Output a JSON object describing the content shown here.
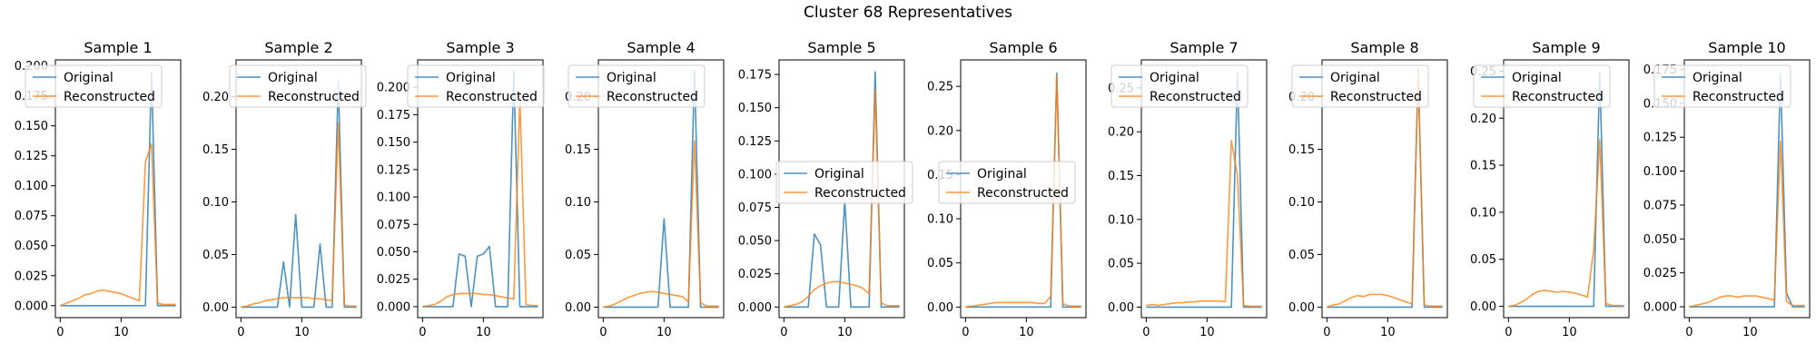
{
  "figure": {
    "title": "Cluster 68 Representatives"
  },
  "colors": {
    "original": "#1f77b4",
    "reconstructed": "#ff7f0e",
    "axes": "#000000",
    "legend_frame": "#cccccc"
  },
  "legend": {
    "labels": [
      "Original",
      "Reconstructed"
    ]
  },
  "chart_data": [
    {
      "type": "line",
      "title": "Sample 1",
      "xlim": [
        -0.8,
        19.8
      ],
      "ylim": [
        -0.01,
        0.205
      ],
      "xticks": [
        0,
        10
      ],
      "yticks": [
        0.0,
        0.025,
        0.05,
        0.075,
        0.1,
        0.125,
        0.15,
        0.175,
        0.2
      ],
      "ytick_labels": [
        "0.000",
        "0.025",
        "0.050",
        "0.075",
        "0.100",
        "0.125",
        "0.150",
        "0.175",
        "0.200"
      ],
      "legend_loc": "upper left",
      "x": [
        0,
        1,
        2,
        3,
        4,
        5,
        6,
        7,
        8,
        9,
        10,
        11,
        12,
        13,
        14,
        15,
        16,
        17,
        18,
        19
      ],
      "series": [
        {
          "name": "Original",
          "values": [
            0,
            0,
            0,
            0,
            0,
            0,
            0,
            0,
            0,
            0,
            0,
            0,
            0,
            0,
            0,
            0.195,
            0,
            0,
            0,
            0
          ]
        },
        {
          "name": "Reconstructed",
          "values": [
            0,
            0.002,
            0.004,
            0.006,
            0.009,
            0.01,
            0.012,
            0.013,
            0.012,
            0.011,
            0.01,
            0.008,
            0.006,
            0.004,
            0.12,
            0.135,
            0.002,
            0.001,
            0.001,
            0.001
          ]
        }
      ]
    },
    {
      "type": "line",
      "title": "Sample 2",
      "xlim": [
        -0.8,
        19.8
      ],
      "ylim": [
        -0.01,
        0.235
      ],
      "xticks": [
        0,
        10
      ],
      "yticks": [
        0.0,
        0.05,
        0.1,
        0.15,
        0.2
      ],
      "ytick_labels": [
        "0.00",
        "0.05",
        "0.10",
        "0.15",
        "0.20"
      ],
      "legend_loc": "upper right",
      "x": [
        0,
        1,
        2,
        3,
        4,
        5,
        6,
        7,
        8,
        9,
        10,
        11,
        12,
        13,
        14,
        15,
        16,
        17,
        18,
        19
      ],
      "series": [
        {
          "name": "Original",
          "values": [
            0,
            0,
            0,
            0,
            0,
            0,
            0,
            0.043,
            0,
            0.088,
            0,
            0,
            0,
            0.06,
            0,
            0,
            0.215,
            0,
            0,
            0
          ]
        },
        {
          "name": "Reconstructed",
          "values": [
            0,
            0.001,
            0.003,
            0.004,
            0.006,
            0.007,
            0.008,
            0.009,
            0.009,
            0.009,
            0.009,
            0.009,
            0.008,
            0.008,
            0.007,
            0.006,
            0.175,
            0.002,
            0.001,
            0.001
          ]
        }
      ]
    },
    {
      "type": "line",
      "title": "Sample 3",
      "xlim": [
        -0.8,
        19.8
      ],
      "ylim": [
        -0.01,
        0.225
      ],
      "xticks": [
        0,
        10
      ],
      "yticks": [
        0.0,
        0.025,
        0.05,
        0.075,
        0.1,
        0.125,
        0.15,
        0.175,
        0.2
      ],
      "ytick_labels": [
        "0.000",
        "0.025",
        "0.050",
        "0.075",
        "0.100",
        "0.125",
        "0.150",
        "0.175",
        "0.200"
      ],
      "legend_loc": "upper center",
      "x": [
        0,
        1,
        2,
        3,
        4,
        5,
        6,
        7,
        8,
        9,
        10,
        11,
        12,
        13,
        14,
        15,
        16,
        17,
        18,
        19
      ],
      "series": [
        {
          "name": "Original",
          "values": [
            0,
            0,
            0,
            0,
            0,
            0,
            0.048,
            0.046,
            0,
            0.046,
            0.048,
            0.055,
            0,
            0,
            0,
            0.215,
            0,
            0,
            0,
            0
          ]
        },
        {
          "name": "Reconstructed",
          "values": [
            0,
            0.001,
            0.002,
            0.005,
            0.009,
            0.011,
            0.012,
            0.012,
            0.012,
            0.012,
            0.011,
            0.011,
            0.01,
            0.009,
            0.008,
            0.007,
            0.19,
            0.002,
            0.001,
            0.001
          ]
        }
      ]
    },
    {
      "type": "line",
      "title": "Sample 4",
      "xlim": [
        -0.8,
        19.8
      ],
      "ylim": [
        -0.01,
        0.235
      ],
      "xticks": [
        0,
        10
      ],
      "yticks": [
        0.0,
        0.05,
        0.1,
        0.15,
        0.2
      ],
      "ytick_labels": [
        "0.00",
        "0.05",
        "0.10",
        "0.15",
        "0.20"
      ],
      "legend_loc": "upper left",
      "x": [
        0,
        1,
        2,
        3,
        4,
        5,
        6,
        7,
        8,
        9,
        10,
        11,
        12,
        13,
        14,
        15,
        16,
        17,
        18,
        19
      ],
      "series": [
        {
          "name": "Original",
          "values": [
            0,
            0,
            0,
            0,
            0,
            0,
            0,
            0,
            0,
            0,
            0.084,
            0,
            0,
            0,
            0,
            0.225,
            0,
            0,
            0,
            0
          ]
        },
        {
          "name": "Reconstructed",
          "values": [
            0,
            0.001,
            0.003,
            0.006,
            0.009,
            0.011,
            0.013,
            0.014,
            0.015,
            0.014,
            0.013,
            0.012,
            0.011,
            0.01,
            0.005,
            0.158,
            0.004,
            0.001,
            0.001,
            0.001
          ]
        }
      ]
    },
    {
      "type": "line",
      "title": "Sample 5",
      "xlim": [
        -0.8,
        19.8
      ],
      "ylim": [
        -0.008,
        0.186
      ],
      "xticks": [
        0,
        10
      ],
      "yticks": [
        0.0,
        0.025,
        0.05,
        0.075,
        0.1,
        0.125,
        0.15,
        0.175
      ],
      "ytick_labels": [
        "0.000",
        "0.025",
        "0.050",
        "0.075",
        "0.100",
        "0.125",
        "0.150",
        "0.175"
      ],
      "legend_loc": "center",
      "x": [
        0,
        1,
        2,
        3,
        4,
        5,
        6,
        7,
        8,
        9,
        10,
        11,
        12,
        13,
        14,
        15,
        16,
        17,
        18,
        19
      ],
      "series": [
        {
          "name": "Original",
          "values": [
            0,
            0,
            0,
            0,
            0,
            0.055,
            0.047,
            0,
            0,
            0,
            0.08,
            0,
            0,
            0,
            0,
            0.177,
            0,
            0,
            0,
            0
          ]
        },
        {
          "name": "Reconstructed",
          "values": [
            0,
            0.001,
            0.002,
            0.004,
            0.008,
            0.013,
            0.016,
            0.018,
            0.019,
            0.019,
            0.018,
            0.017,
            0.016,
            0.014,
            0.01,
            0.163,
            0.003,
            0.001,
            0.001,
            0.001
          ]
        }
      ]
    },
    {
      "type": "line",
      "title": "Sample 6",
      "xlim": [
        -0.8,
        19.8
      ],
      "ylim": [
        -0.012,
        0.28
      ],
      "xticks": [
        0,
        10
      ],
      "yticks": [
        0.0,
        0.05,
        0.1,
        0.15,
        0.2,
        0.25
      ],
      "ytick_labels": [
        "0.00",
        "0.05",
        "0.10",
        "0.15",
        "0.20",
        "0.25"
      ],
      "legend_loc": "center left",
      "x": [
        0,
        1,
        2,
        3,
        4,
        5,
        6,
        7,
        8,
        9,
        10,
        11,
        12,
        13,
        14,
        15,
        16,
        17,
        18,
        19
      ],
      "series": [
        {
          "name": "Original",
          "values": [
            0,
            0,
            0,
            0,
            0,
            0,
            0,
            0,
            0,
            0,
            0,
            0,
            0,
            0,
            0,
            0.265,
            0,
            0,
            0,
            0
          ]
        },
        {
          "name": "Reconstructed",
          "values": [
            0,
            0.001,
            0.002,
            0.003,
            0.004,
            0.005,
            0.005,
            0.005,
            0.005,
            0.005,
            0.005,
            0.005,
            0.004,
            0.004,
            0.012,
            0.262,
            0.004,
            0.001,
            0.001,
            0.001
          ]
        }
      ]
    },
    {
      "type": "line",
      "title": "Sample 7",
      "xlim": [
        -0.8,
        19.8
      ],
      "ylim": [
        -0.012,
        0.282
      ],
      "xticks": [
        0,
        10
      ],
      "yticks": [
        0.0,
        0.05,
        0.1,
        0.15,
        0.2,
        0.25
      ],
      "ytick_labels": [
        "0.00",
        "0.05",
        "0.10",
        "0.15",
        "0.20",
        "0.25"
      ],
      "legend_loc": "upper left",
      "x": [
        0,
        1,
        2,
        3,
        4,
        5,
        6,
        7,
        8,
        9,
        10,
        11,
        12,
        13,
        14,
        15,
        16,
        17,
        18,
        19
      ],
      "series": [
        {
          "name": "Original",
          "values": [
            0,
            0,
            0,
            0,
            0,
            0,
            0,
            0,
            0,
            0,
            0,
            0,
            0,
            0,
            0,
            0.268,
            0,
            0,
            0,
            0
          ]
        },
        {
          "name": "Reconstructed",
          "values": [
            0.002,
            0.003,
            0.002,
            0.003,
            0.004,
            0.005,
            0.005,
            0.006,
            0.006,
            0.007,
            0.007,
            0.007,
            0.007,
            0.006,
            0.19,
            0.15,
            0.002,
            0.001,
            0.001,
            0.001
          ]
        }
      ]
    },
    {
      "type": "line",
      "title": "Sample 8",
      "xlim": [
        -0.8,
        19.8
      ],
      "ylim": [
        -0.01,
        0.235
      ],
      "xticks": [
        0,
        10
      ],
      "yticks": [
        0.0,
        0.05,
        0.1,
        0.15,
        0.2
      ],
      "ytick_labels": [
        "0.00",
        "0.05",
        "0.10",
        "0.15",
        "0.20"
      ],
      "legend_loc": "upper left",
      "x": [
        0,
        1,
        2,
        3,
        4,
        5,
        6,
        7,
        8,
        9,
        10,
        11,
        12,
        13,
        14,
        15,
        16,
        17,
        18,
        19
      ],
      "series": [
        {
          "name": "Original",
          "values": [
            0,
            0,
            0,
            0,
            0,
            0,
            0,
            0,
            0,
            0,
            0,
            0,
            0,
            0,
            0,
            0.226,
            0,
            0,
            0,
            0
          ]
        },
        {
          "name": "Reconstructed",
          "values": [
            0,
            0.002,
            0.003,
            0.006,
            0.009,
            0.011,
            0.01,
            0.012,
            0.012,
            0.012,
            0.011,
            0.009,
            0.007,
            0.005,
            0.003,
            0.222,
            0.002,
            0.001,
            0.001,
            0.001
          ]
        }
      ]
    },
    {
      "type": "line",
      "title": "Sample 9",
      "xlim": [
        -0.8,
        19.8
      ],
      "ylim": [
        -0.012,
        0.262
      ],
      "xticks": [
        0,
        10
      ],
      "yticks": [
        0.0,
        0.05,
        0.1,
        0.15,
        0.2,
        0.25
      ],
      "ytick_labels": [
        "0.00",
        "0.05",
        "0.10",
        "0.15",
        "0.20",
        "0.25"
      ],
      "legend_loc": "upper left",
      "x": [
        0,
        1,
        2,
        3,
        4,
        5,
        6,
        7,
        8,
        9,
        10,
        11,
        12,
        13,
        14,
        15,
        16,
        17,
        18,
        19
      ],
      "series": [
        {
          "name": "Original",
          "values": [
            0,
            0,
            0,
            0,
            0,
            0,
            0,
            0,
            0,
            0,
            0,
            0,
            0,
            0,
            0,
            0.25,
            0,
            0,
            0,
            0
          ]
        },
        {
          "name": "Reconstructed",
          "values": [
            0,
            0.001,
            0.004,
            0.008,
            0.013,
            0.016,
            0.017,
            0.016,
            0.015,
            0.016,
            0.015,
            0.014,
            0.012,
            0.01,
            0.06,
            0.177,
            0.003,
            0.001,
            0.001,
            0.001
          ]
        }
      ]
    },
    {
      "type": "line",
      "title": "Sample 10",
      "xlim": [
        -0.8,
        19.8
      ],
      "ylim": [
        -0.008,
        0.182
      ],
      "xticks": [
        0,
        10
      ],
      "yticks": [
        0.0,
        0.025,
        0.05,
        0.075,
        0.1,
        0.125,
        0.15,
        0.175
      ],
      "ytick_labels": [
        "0.000",
        "0.025",
        "0.050",
        "0.075",
        "0.100",
        "0.125",
        "0.150",
        "0.175"
      ],
      "legend_loc": "upper left",
      "x": [
        0,
        1,
        2,
        3,
        4,
        5,
        6,
        7,
        8,
        9,
        10,
        11,
        12,
        13,
        14,
        15,
        16,
        17,
        18,
        19
      ],
      "series": [
        {
          "name": "Original",
          "values": [
            0,
            0,
            0,
            0,
            0,
            0,
            0,
            0,
            0,
            0,
            0,
            0,
            0,
            0,
            0,
            0.172,
            0.01,
            0,
            0,
            0
          ]
        },
        {
          "name": "Reconstructed",
          "values": [
            0,
            0.001,
            0.002,
            0.003,
            0.005,
            0.007,
            0.008,
            0.008,
            0.007,
            0.008,
            0.008,
            0.008,
            0.007,
            0.006,
            0.005,
            0.122,
            0.004,
            0.001,
            0.001,
            0.001
          ]
        }
      ]
    }
  ]
}
